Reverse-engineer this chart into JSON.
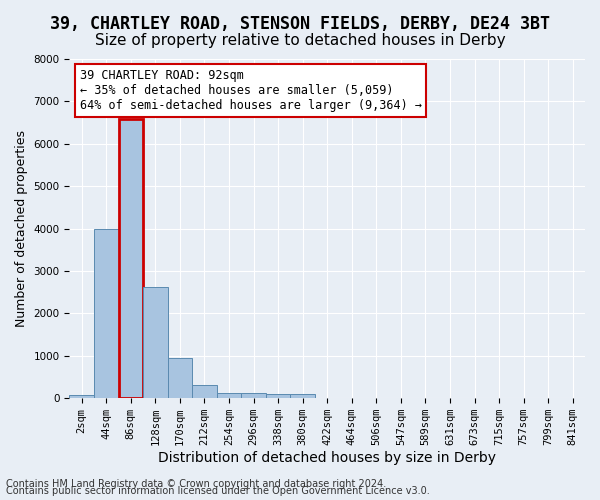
{
  "title": "39, CHARTLEY ROAD, STENSON FIELDS, DERBY, DE24 3BT",
  "subtitle": "Size of property relative to detached houses in Derby",
  "xlabel": "Distribution of detached houses by size in Derby",
  "ylabel": "Number of detached properties",
  "footnote1": "Contains HM Land Registry data © Crown copyright and database right 2024.",
  "footnote2": "Contains public sector information licensed under the Open Government Licence v3.0.",
  "bins": [
    "2sqm",
    "44sqm",
    "86sqm",
    "128sqm",
    "170sqm",
    "212sqm",
    "254sqm",
    "296sqm",
    "338sqm",
    "380sqm",
    "422sqm",
    "464sqm",
    "506sqm",
    "547sqm",
    "589sqm",
    "631sqm",
    "673sqm",
    "715sqm",
    "757sqm",
    "799sqm",
    "841sqm"
  ],
  "bar_values": [
    75,
    3980,
    6580,
    2620,
    960,
    310,
    130,
    115,
    90,
    95,
    0,
    0,
    0,
    0,
    0,
    0,
    0,
    0,
    0,
    0,
    0
  ],
  "bar_color": "#a8c4e0",
  "bar_edge_color": "#5a8ab0",
  "highlight_bar_index": 2,
  "highlight_color": "#cc0000",
  "annotation_text": "39 CHARTLEY ROAD: 92sqm\n← 35% of detached houses are smaller (5,059)\n64% of semi-detached houses are larger (9,364) →",
  "annotation_box_edgecolor": "#cc0000",
  "annotation_box_facecolor": "white",
  "ylim": [
    0,
    8000
  ],
  "yticks": [
    0,
    1000,
    2000,
    3000,
    4000,
    5000,
    6000,
    7000,
    8000
  ],
  "background_color": "#e8eef5",
  "axes_bg_color": "#e8eef5",
  "grid_color": "white",
  "title_fontsize": 12,
  "subtitle_fontsize": 11,
  "xlabel_fontsize": 10,
  "ylabel_fontsize": 9,
  "tick_fontsize": 7.5,
  "annotation_fontsize": 8.5,
  "footnote_fontsize": 7
}
